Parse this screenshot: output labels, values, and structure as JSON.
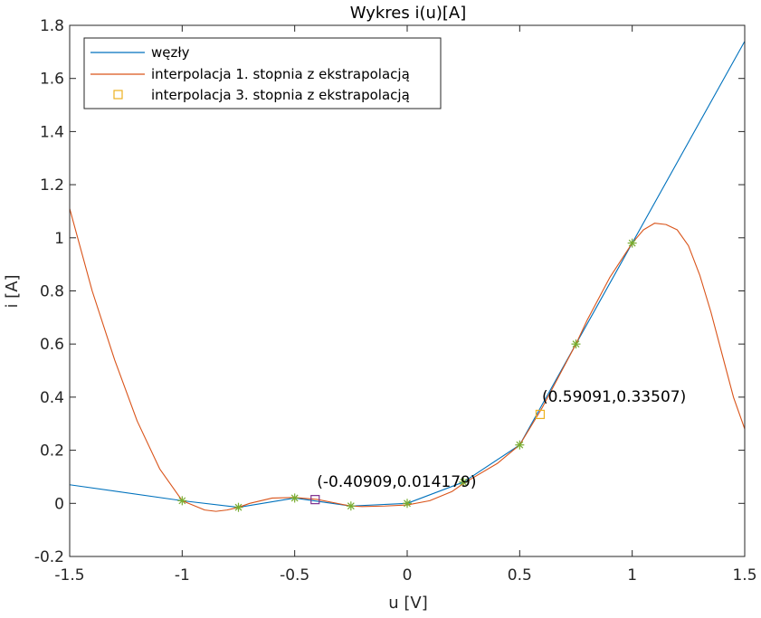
{
  "chart_data": {
    "type": "line",
    "title": "Wykres i(u)[A]",
    "xlabel": "u [V]",
    "ylabel": "i [A]",
    "xlim": [
      -1.5,
      1.5
    ],
    "ylim": [
      -0.2,
      1.8
    ],
    "grid": false,
    "legend_position": "top-left",
    "colors": {
      "nodes_line": "#0072BD",
      "interp1": "#D95319",
      "interp3": "#EDB120",
      "markers": "#77AC30",
      "annot_box": "#7E2F8E"
    },
    "x_ticks": [
      "-1.5",
      "-1",
      "-0.5",
      "0",
      "0.5",
      "1",
      "1.5"
    ],
    "x_tick_values": [
      -1.5,
      -1,
      -0.5,
      0,
      0.5,
      1,
      1.5
    ],
    "y_ticks": [
      "-0.2",
      "0",
      "0.2",
      "0.4",
      "0.6",
      "0.8",
      "1",
      "1.2",
      "1.4",
      "1.6",
      "1.8"
    ],
    "y_tick_values": [
      -0.2,
      0,
      0.2,
      0.4,
      0.6,
      0.8,
      1,
      1.2,
      1.4,
      1.6,
      1.8
    ],
    "series": [
      {
        "name": "węzły",
        "style": "line",
        "x": [
          -1.5,
          -1,
          -0.75,
          -0.5,
          -0.25,
          0,
          0.25,
          0.5,
          0.75,
          1,
          1.5
        ],
        "y": [
          0.07,
          0.01,
          -0.015,
          0.02,
          -0.01,
          0.0,
          0.08,
          0.22,
          0.6,
          0.98,
          1.74
        ]
      },
      {
        "name": "interpolacja 1. stopnia z ekstrapolacją",
        "style": "line",
        "x": [
          -1.5,
          -1.4,
          -1.3,
          -1.2,
          -1.1,
          -1.0,
          -0.9,
          -0.85,
          -0.8,
          -0.75,
          -0.7,
          -0.6,
          -0.5,
          -0.4,
          -0.3,
          -0.25,
          -0.2,
          -0.1,
          0.0,
          0.1,
          0.2,
          0.25,
          0.3,
          0.4,
          0.5,
          0.6,
          0.7,
          0.75,
          0.8,
          0.9,
          1.0,
          1.05,
          1.1,
          1.15,
          1.2,
          1.25,
          1.3,
          1.35,
          1.4,
          1.45,
          1.5
        ],
        "y": [
          1.11,
          0.8,
          0.54,
          0.31,
          0.13,
          0.01,
          -0.025,
          -0.03,
          -0.025,
          -0.015,
          0.0,
          0.02,
          0.022,
          0.015,
          -0.002,
          -0.01,
          -0.012,
          -0.01,
          -0.006,
          0.01,
          0.045,
          0.075,
          0.1,
          0.15,
          0.22,
          0.36,
          0.52,
          0.6,
          0.69,
          0.85,
          0.98,
          1.03,
          1.055,
          1.05,
          1.03,
          0.97,
          0.86,
          0.72,
          0.56,
          0.4,
          0.28
        ]
      },
      {
        "name": "interpolacja 3. stopnia z ekstrapolacją",
        "style": "square-markers",
        "x": [
          0.59091
        ],
        "y": [
          0.33507
        ]
      },
      {
        "style": "star-markers",
        "x": [
          -1,
          -0.75,
          -0.5,
          -0.25,
          0,
          0.25,
          0.5,
          0.75,
          1
        ],
        "y": [
          0.01,
          -0.015,
          0.02,
          -0.01,
          0.0,
          0.08,
          0.22,
          0.6,
          0.98
        ]
      }
    ],
    "annotations": [
      {
        "text": "(-0.40909,0.014179)",
        "x": -0.40909,
        "y": 0.014179
      },
      {
        "text": "(0.59091,0.33507)",
        "x": 0.59091,
        "y": 0.33507
      }
    ]
  }
}
